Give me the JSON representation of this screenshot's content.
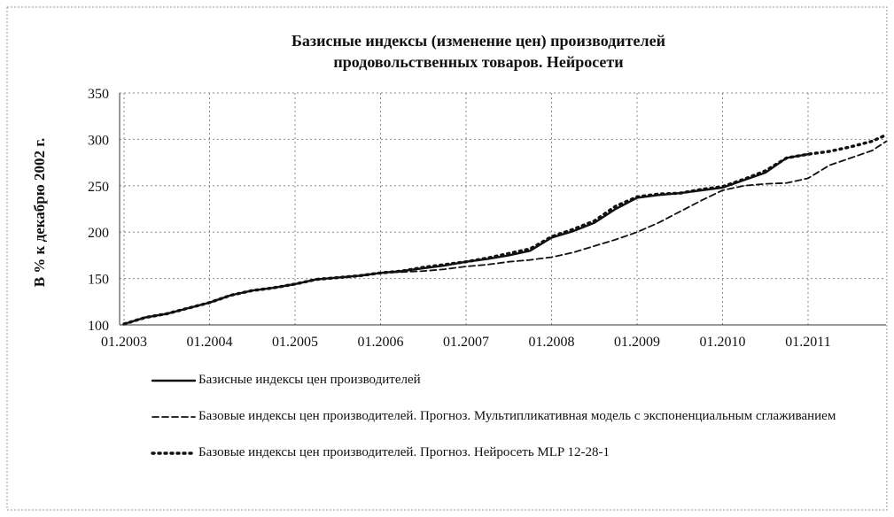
{
  "chart_data": {
    "type": "line",
    "title": "Базисные индексы (изменение цен) производителей\nпродовольственных товаров. Нейросети",
    "y_label": "В % к декабрю 2002 г.",
    "x": [
      "01.2003",
      "04.2003",
      "07.2003",
      "10.2003",
      "01.2004",
      "04.2004",
      "07.2004",
      "10.2004",
      "01.2005",
      "04.2005",
      "07.2005",
      "10.2005",
      "01.2006",
      "04.2006",
      "07.2006",
      "10.2006",
      "01.2007",
      "04.2007",
      "07.2007",
      "10.2007",
      "01.2008",
      "04.2008",
      "07.2008",
      "10.2008",
      "01.2009",
      "04.2009",
      "07.2009",
      "10.2009",
      "01.2010",
      "04.2010",
      "07.2010",
      "10.2010",
      "01.2011",
      "04.2011",
      "07.2011",
      "10.2011",
      "12.2011"
    ],
    "xticks": [
      "01.2003",
      "01.2004",
      "01.2005",
      "01.2006",
      "01.2007",
      "01.2008",
      "01.2009",
      "01.2010",
      "01.2011"
    ],
    "ylim": [
      100,
      350
    ],
    "yticks": [
      100,
      150,
      200,
      250,
      300,
      350
    ],
    "grid": true,
    "series": [
      {
        "name": "Базисные индексы цен производителей",
        "color": "#111",
        "style": "solid",
        "values": [
          101,
          108,
          112,
          118,
          124,
          132,
          137,
          140,
          144,
          149,
          151,
          153,
          156,
          158,
          161,
          164,
          168,
          171,
          175,
          180,
          194,
          201,
          210,
          225,
          237,
          240,
          242,
          245,
          248,
          256,
          264,
          280,
          284,
          null,
          null,
          null,
          null
        ]
      },
      {
        "name": "Базовые индексы цен производителей. Прогноз. Мультипликативная модель с экспоненциальным сглаживанием",
        "color": "#111",
        "style": "dashed",
        "values": [
          101,
          108,
          112,
          118,
          124,
          132,
          137,
          140,
          144,
          149,
          151,
          153,
          156,
          157,
          158,
          160,
          163,
          165,
          168,
          170,
          173,
          178,
          185,
          192,
          200,
          210,
          222,
          234,
          245,
          250,
          252,
          253,
          258,
          272,
          280,
          288,
          298
        ]
      },
      {
        "name": "Базовые индексы цен производителей. Прогноз. Нейросеть MLP 12-28-1",
        "color": "#111",
        "style": "dotted",
        "values": [
          101,
          108,
          112,
          118,
          124,
          132,
          137,
          140,
          144,
          149,
          151,
          153,
          156,
          158,
          162,
          165,
          168,
          172,
          177,
          182,
          195,
          203,
          212,
          228,
          238,
          241,
          242,
          246,
          249,
          257,
          266,
          280,
          284,
          287,
          292,
          298,
          305
        ]
      }
    ]
  }
}
